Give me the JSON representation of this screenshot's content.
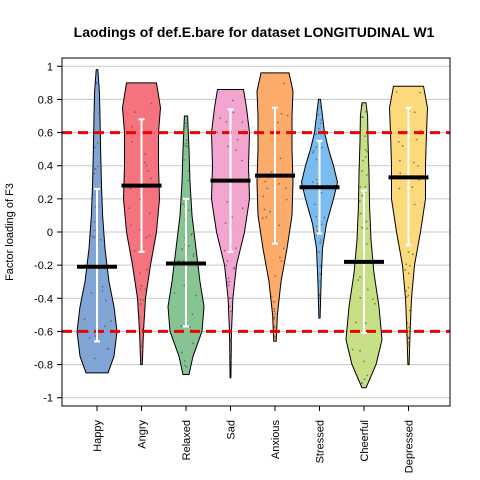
{
  "chart_data": {
    "type": "violin",
    "title": "Laodings of def.E.bare for dataset LONGITUDINAL W1",
    "xlabel": "",
    "ylabel": "Factor loading of F3",
    "ylim": [
      -1.05,
      1.05
    ],
    "yticks": [
      -1,
      -0.8,
      -0.6,
      -0.4,
      -0.2,
      0,
      0.2,
      0.4,
      0.6,
      0.8,
      1
    ],
    "grid": true,
    "reference_lines": [
      0.6,
      -0.6
    ],
    "reference_line_color": "#ee0000",
    "categories": [
      "Happy",
      "Angry",
      "Relaxed",
      "Sad",
      "Anxious",
      "Stressed",
      "Cheerful",
      "Depressed"
    ],
    "series": [
      {
        "category": "Happy",
        "color": "#80a4d4",
        "min": -0.85,
        "max": 0.98,
        "mean": -0.21,
        "sd_low": -0.66,
        "sd_high": 0.26,
        "density": [
          [
            -0.85,
            0.55
          ],
          [
            -0.75,
            0.85
          ],
          [
            -0.6,
            1.0
          ],
          [
            -0.45,
            0.85
          ],
          [
            -0.3,
            0.6
          ],
          [
            -0.1,
            0.4
          ],
          [
            0.1,
            0.28
          ],
          [
            0.3,
            0.22
          ],
          [
            0.5,
            0.18
          ],
          [
            0.7,
            0.15
          ],
          [
            0.85,
            0.12
          ],
          [
            0.98,
            0.04
          ]
        ]
      },
      {
        "category": "Angry",
        "color": "#f4737f",
        "min": -0.8,
        "max": 0.9,
        "mean": 0.28,
        "sd_low": -0.12,
        "sd_high": 0.68,
        "density": [
          [
            -0.8,
            0.04
          ],
          [
            -0.6,
            0.1
          ],
          [
            -0.4,
            0.2
          ],
          [
            -0.2,
            0.45
          ],
          [
            0.0,
            0.75
          ],
          [
            0.2,
            0.9
          ],
          [
            0.4,
            0.85
          ],
          [
            0.6,
            0.85
          ],
          [
            0.75,
            0.95
          ],
          [
            0.9,
            0.75
          ]
        ]
      },
      {
        "category": "Relaxed",
        "color": "#86c493",
        "min": -0.86,
        "max": 0.7,
        "mean": -0.19,
        "sd_low": -0.57,
        "sd_high": 0.2,
        "density": [
          [
            -0.86,
            0.15
          ],
          [
            -0.75,
            0.35
          ],
          [
            -0.6,
            0.8
          ],
          [
            -0.45,
            0.9
          ],
          [
            -0.3,
            0.7
          ],
          [
            -0.1,
            0.5
          ],
          [
            0.1,
            0.3
          ],
          [
            0.3,
            0.2
          ],
          [
            0.5,
            0.15
          ],
          [
            0.7,
            0.08
          ]
        ]
      },
      {
        "category": "Sad",
        "color": "#f2a6cf",
        "min": -0.88,
        "max": 0.86,
        "mean": 0.31,
        "sd_low": -0.12,
        "sd_high": 0.74,
        "density": [
          [
            -0.88,
            0.02
          ],
          [
            -0.6,
            0.05
          ],
          [
            -0.4,
            0.12
          ],
          [
            -0.2,
            0.3
          ],
          [
            0.0,
            0.7
          ],
          [
            0.2,
            0.95
          ],
          [
            0.4,
            0.9
          ],
          [
            0.6,
            0.95
          ],
          [
            0.75,
            0.8
          ],
          [
            0.86,
            0.65
          ]
        ]
      },
      {
        "category": "Anxious",
        "color": "#fcab6a",
        "min": -0.66,
        "max": 0.96,
        "mean": 0.34,
        "sd_low": -0.07,
        "sd_high": 0.75,
        "density": [
          [
            -0.66,
            0.06
          ],
          [
            -0.5,
            0.12
          ],
          [
            -0.3,
            0.3
          ],
          [
            -0.1,
            0.6
          ],
          [
            0.1,
            0.85
          ],
          [
            0.3,
            0.9
          ],
          [
            0.5,
            0.85
          ],
          [
            0.7,
            0.85
          ],
          [
            0.85,
            0.9
          ],
          [
            0.96,
            0.7
          ]
        ]
      },
      {
        "category": "Stressed",
        "color": "#7bbcf0",
        "min": -0.52,
        "max": 0.8,
        "mean": 0.27,
        "sd_low": -0.01,
        "sd_high": 0.55,
        "density": [
          [
            -0.52,
            0.03
          ],
          [
            -0.3,
            0.08
          ],
          [
            -0.1,
            0.15
          ],
          [
            0.05,
            0.35
          ],
          [
            0.2,
            0.7
          ],
          [
            0.3,
            0.9
          ],
          [
            0.4,
            0.7
          ],
          [
            0.5,
            0.45
          ],
          [
            0.6,
            0.25
          ],
          [
            0.7,
            0.15
          ],
          [
            0.8,
            0.05
          ]
        ]
      },
      {
        "category": "Cheerful",
        "color": "#c8e085",
        "min": -0.94,
        "max": 0.78,
        "mean": -0.18,
        "sd_low": -0.61,
        "sd_high": 0.25,
        "density": [
          [
            -0.94,
            0.1
          ],
          [
            -0.8,
            0.6
          ],
          [
            -0.65,
            0.9
          ],
          [
            -0.45,
            0.75
          ],
          [
            -0.25,
            0.5
          ],
          [
            -0.05,
            0.35
          ],
          [
            0.15,
            0.28
          ],
          [
            0.35,
            0.25
          ],
          [
            0.55,
            0.2
          ],
          [
            0.7,
            0.18
          ],
          [
            0.78,
            0.1
          ]
        ]
      },
      {
        "category": "Depressed",
        "color": "#fcd97b",
        "min": -0.8,
        "max": 0.88,
        "mean": 0.33,
        "sd_low": -0.08,
        "sd_high": 0.75,
        "density": [
          [
            -0.8,
            0.03
          ],
          [
            -0.6,
            0.08
          ],
          [
            -0.4,
            0.15
          ],
          [
            -0.2,
            0.3
          ],
          [
            0.0,
            0.6
          ],
          [
            0.2,
            0.85
          ],
          [
            0.4,
            0.85
          ],
          [
            0.6,
            0.9
          ],
          [
            0.75,
            0.95
          ],
          [
            0.88,
            0.75
          ]
        ]
      }
    ]
  }
}
